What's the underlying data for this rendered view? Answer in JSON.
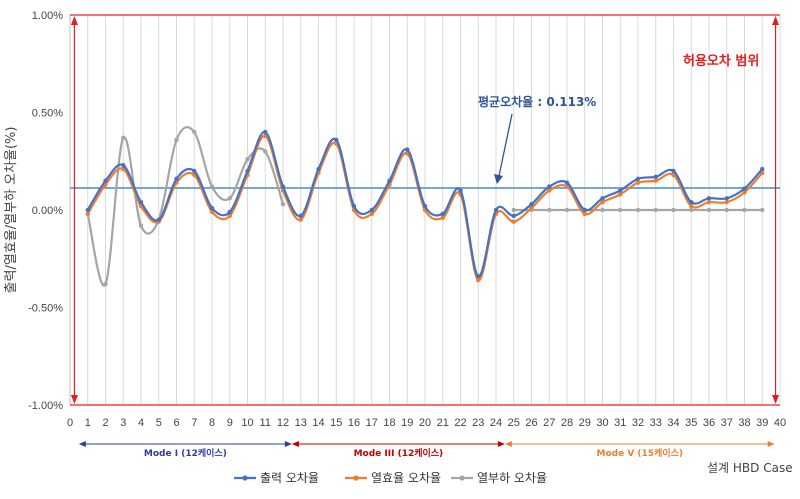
{
  "chart_data": {
    "type": "line",
    "title": "",
    "xlabel": "설계 HBD Case",
    "ylabel": "출력/열효율/열부하 오차율(%)",
    "xlim": [
      0,
      40
    ],
    "ylim": [
      -1.0,
      1.0
    ],
    "y_ticks": [
      "1.00%",
      "0.50%",
      "0.00%",
      "-0.50%",
      "-1.00%"
    ],
    "y_tick_values": [
      1.0,
      0.5,
      0.0,
      -0.5,
      -1.0
    ],
    "x_ticks": [
      "0",
      "1",
      "2",
      "3",
      "4",
      "5",
      "6",
      "7",
      "8",
      "9",
      "10",
      "11",
      "12",
      "13",
      "14",
      "15",
      "16",
      "17",
      "18",
      "19",
      "20",
      "21",
      "22",
      "23",
      "24",
      "25",
      "26",
      "27",
      "28",
      "29",
      "30",
      "31",
      "32",
      "33",
      "34",
      "35",
      "36",
      "37",
      "38",
      "39",
      "40"
    ],
    "grid": "vertical",
    "legend_position": "bottom",
    "series": [
      {
        "name": "출력 오차율",
        "color": "#4472C4",
        "x": [
          1,
          2,
          3,
          4,
          5,
          6,
          7,
          8,
          9,
          10,
          11,
          12,
          13,
          14,
          15,
          16,
          17,
          18,
          19,
          20,
          21,
          22,
          23,
          24,
          25,
          26,
          27,
          28,
          29,
          30,
          31,
          32,
          33,
          34,
          35,
          36,
          37,
          38,
          39
        ],
        "values": [
          0.0,
          0.15,
          0.23,
          0.04,
          -0.05,
          0.16,
          0.2,
          0.01,
          -0.01,
          0.2,
          0.4,
          0.12,
          -0.03,
          0.21,
          0.36,
          0.02,
          0.0,
          0.15,
          0.31,
          0.02,
          -0.02,
          0.1,
          -0.34,
          0.0,
          -0.03,
          0.03,
          0.12,
          0.14,
          0.0,
          0.06,
          0.1,
          0.16,
          0.17,
          0.2,
          0.04,
          0.06,
          0.06,
          0.11,
          0.21
        ]
      },
      {
        "name": "열효율 오차율",
        "color": "#ED7D31",
        "x": [
          1,
          2,
          3,
          4,
          5,
          6,
          7,
          8,
          9,
          10,
          11,
          12,
          13,
          14,
          15,
          16,
          17,
          18,
          19,
          20,
          21,
          22,
          23,
          24,
          25,
          26,
          27,
          28,
          29,
          30,
          31,
          32,
          33,
          34,
          35,
          36,
          37,
          38,
          39
        ],
        "values": [
          -0.02,
          0.13,
          0.21,
          0.02,
          -0.06,
          0.14,
          0.18,
          -0.01,
          -0.03,
          0.18,
          0.38,
          0.1,
          -0.05,
          0.19,
          0.34,
          0.0,
          -0.02,
          0.13,
          0.29,
          0.0,
          -0.04,
          0.08,
          -0.36,
          -0.02,
          -0.06,
          0.01,
          0.1,
          0.12,
          -0.02,
          0.04,
          0.08,
          0.14,
          0.15,
          0.18,
          0.02,
          0.04,
          0.04,
          0.09,
          0.19
        ]
      },
      {
        "name": "열부하 오차율",
        "color": "#A5A5A5",
        "x": [
          1,
          2,
          3,
          4,
          5,
          6,
          7,
          8,
          9,
          10,
          11,
          12,
          25,
          26,
          27,
          28,
          29,
          30,
          31,
          32,
          33,
          34,
          35,
          36,
          37,
          38,
          39
        ],
        "values": [
          -0.02,
          -0.38,
          0.37,
          -0.08,
          -0.05,
          0.36,
          0.4,
          0.12,
          0.06,
          0.26,
          0.3,
          0.03,
          0.0,
          0.0,
          0.0,
          0.0,
          0.0,
          0.0,
          0.0,
          0.0,
          0.0,
          0.0,
          0.0,
          0.0,
          0.0,
          0.0,
          0.0
        ]
      }
    ],
    "reference_lines": [
      {
        "label": "평균오차율 : 0.113%",
        "value": 0.113,
        "color": "#5B9BD5"
      },
      {
        "value": 1.0,
        "color": "#E02020"
      },
      {
        "value": -1.0,
        "color": "#E02020"
      }
    ],
    "tolerance_label": "허용오차 범위",
    "mode_ranges": [
      {
        "label": "Mode I (12케이스)",
        "from": 0.5,
        "to": 12.5,
        "color": "#2F3E9E"
      },
      {
        "label": "Mode III (12케이스)",
        "from": 12.5,
        "to": 24.5,
        "color": "#C00000"
      },
      {
        "label": "Mode V (15케이스)",
        "from": 24.5,
        "to": 39.7,
        "color": "#ED7D31"
      }
    ]
  }
}
